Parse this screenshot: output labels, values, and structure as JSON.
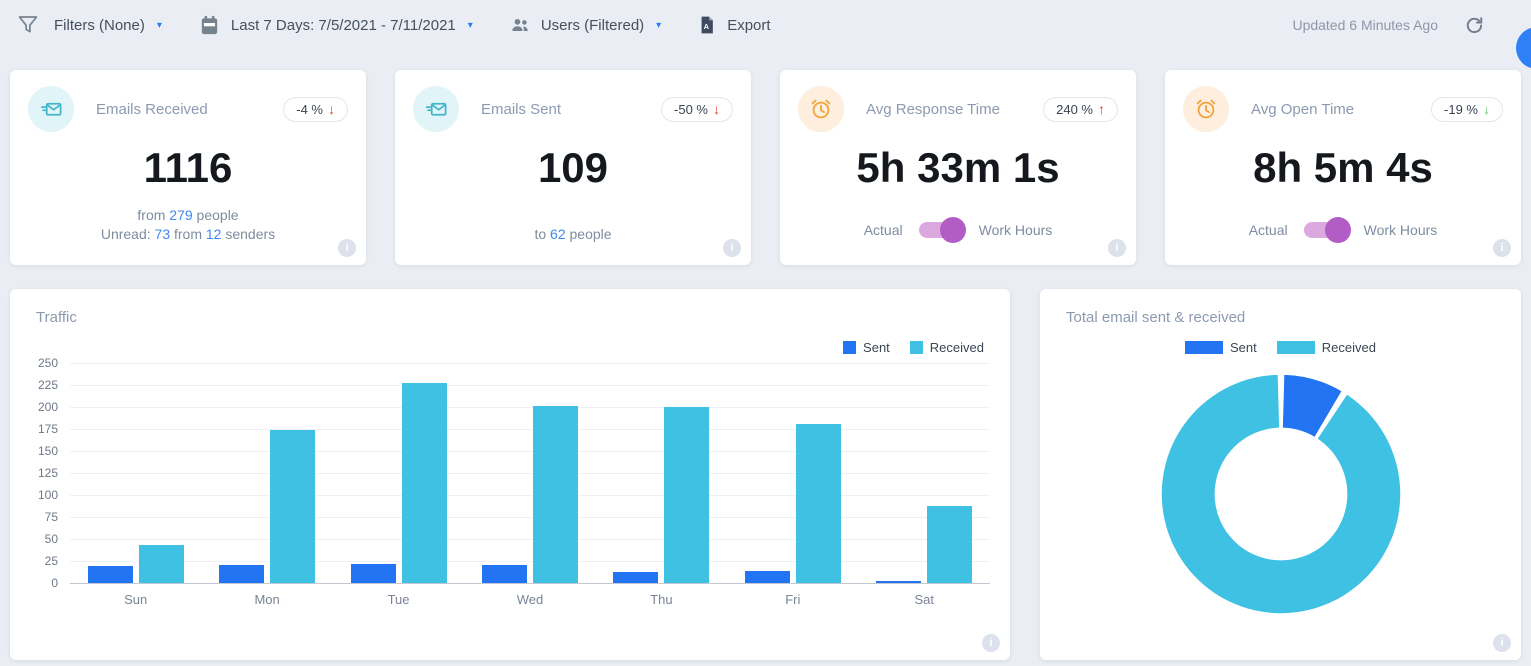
{
  "toolbar": {
    "filters": "Filters (None)",
    "date_range": "Last 7 Days: 7/5/2021 - 7/11/2021",
    "users": "Users (Filtered)",
    "export": "Export",
    "updated": "Updated 6 Minutes Ago"
  },
  "icons": {
    "caret": "▾",
    "arrow_up": "↑",
    "arrow_down": "↓",
    "info": "i"
  },
  "colors": {
    "link_blue": "#4189f6",
    "sent_blue": "#2374f2",
    "received_cyan": "#3ec1e2",
    "toggle_purple": "#b25cc5",
    "chat_bubble_blue": "#2f80f7"
  },
  "stat_cards": [
    {
      "title": "Emails Received",
      "icon": "send-email-icon",
      "badge": {
        "text": "-4 %",
        "arrow": "down",
        "color": "#e8402d"
      },
      "value": "1116",
      "sublines": [
        {
          "parts": [
            {
              "text": "from "
            },
            {
              "text": "279",
              "highlight": true
            },
            {
              "text": " people"
            }
          ]
        },
        {
          "parts": [
            {
              "text": "Unread: "
            },
            {
              "text": "73",
              "highlight": true
            },
            {
              "text": " from "
            },
            {
              "text": "12",
              "highlight": true
            },
            {
              "text": " senders"
            }
          ]
        }
      ]
    },
    {
      "title": "Emails Sent",
      "icon": "send-email-icon",
      "badge": {
        "text": "-50 %",
        "arrow": "down",
        "color": "#e8402d"
      },
      "value": "109",
      "sublines": [
        {
          "parts": [
            {
              "text": "to "
            },
            {
              "text": "62",
              "highlight": true
            },
            {
              "text": " people"
            }
          ]
        }
      ]
    },
    {
      "title": "Avg Response Time",
      "icon": "alarm-clock-icon",
      "badge": {
        "text": "240 %",
        "arrow": "up",
        "color": "#e8402d"
      },
      "value": "5h 33m 1s",
      "toggle": {
        "left": "Actual",
        "right": "Work Hours",
        "state": "right"
      }
    },
    {
      "title": "Avg Open Time",
      "icon": "alarm-clock-icon",
      "badge": {
        "text": "-19 %",
        "arrow": "down",
        "color": "#6fc76f"
      },
      "value": "8h 5m 4s",
      "toggle": {
        "left": "Actual",
        "right": "Work Hours",
        "state": "right"
      }
    }
  ],
  "chart_data": [
    {
      "type": "bar",
      "title": "Traffic",
      "categories": [
        "Sun",
        "Mon",
        "Tue",
        "Wed",
        "Thu",
        "Fri",
        "Sat"
      ],
      "series": [
        {
          "name": "Sent",
          "color": "#2374f2",
          "values": [
            19,
            20,
            22,
            20,
            12,
            14,
            2
          ]
        },
        {
          "name": "Received",
          "color": "#3ec1e2",
          "values": [
            43,
            174,
            227,
            201,
            200,
            181,
            88
          ]
        }
      ],
      "ylim": [
        0,
        250
      ],
      "ytick_step": 25,
      "grid": true,
      "legend_position": "top-right"
    },
    {
      "type": "pie",
      "title": "Total email sent & received",
      "donut": true,
      "legend_position": "top-center",
      "series": [
        {
          "name": "Sent",
          "value": 109,
          "color": "#2374f2"
        },
        {
          "name": "Received",
          "value": 1116,
          "color": "#3ec1e2"
        }
      ]
    }
  ]
}
